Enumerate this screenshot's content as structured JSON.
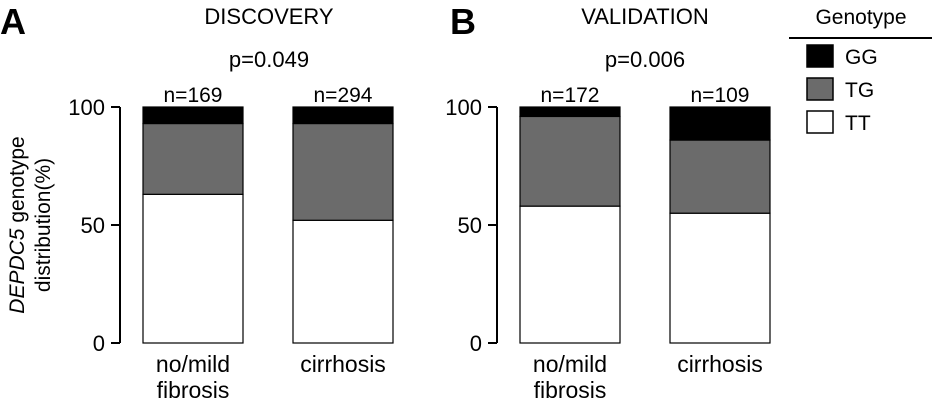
{
  "figure": {
    "y_axis_label_italic": "DEPDC5",
    "y_axis_label_rest": " genotype",
    "y_axis_label_line2": "distribution(%)",
    "legend": {
      "title": "Genotype",
      "items": [
        {
          "label": "GG",
          "color": "#000000"
        },
        {
          "label": "TG",
          "color": "#6b6b6b"
        },
        {
          "label": "TT",
          "color": "#ffffff"
        }
      ]
    }
  },
  "chart_data": [
    {
      "type": "bar",
      "stacked": true,
      "panel_letter": "A",
      "title": "DISCOVERY",
      "pvalue": "p=0.049",
      "categories": [
        [
          "no/mild",
          "fibrosis"
        ],
        [
          "cirrhosis"
        ]
      ],
      "n_labels": [
        "n=169",
        "n=294"
      ],
      "series": [
        {
          "name": "TT",
          "values": [
            63,
            52
          ]
        },
        {
          "name": "TG",
          "values": [
            30,
            41
          ]
        },
        {
          "name": "GG",
          "values": [
            7,
            7
          ]
        }
      ],
      "ylim": [
        0,
        100
      ],
      "yticks": [
        "0",
        "50",
        "100"
      ],
      "ytick_values": [
        0,
        50,
        100
      ]
    },
    {
      "type": "bar",
      "stacked": true,
      "panel_letter": "B",
      "title": "VALIDATION",
      "pvalue": "p=0.006",
      "categories": [
        [
          "no/mild",
          "fibrosis"
        ],
        [
          "cirrhosis"
        ]
      ],
      "n_labels": [
        "n=172",
        "n=109"
      ],
      "series": [
        {
          "name": "TT",
          "values": [
            58,
            55
          ]
        },
        {
          "name": "TG",
          "values": [
            38,
            31
          ]
        },
        {
          "name": "GG",
          "values": [
            4,
            14
          ]
        }
      ],
      "ylim": [
        0,
        100
      ],
      "yticks": [
        "0",
        "50",
        "100"
      ],
      "ytick_values": [
        0,
        50,
        100
      ]
    }
  ]
}
